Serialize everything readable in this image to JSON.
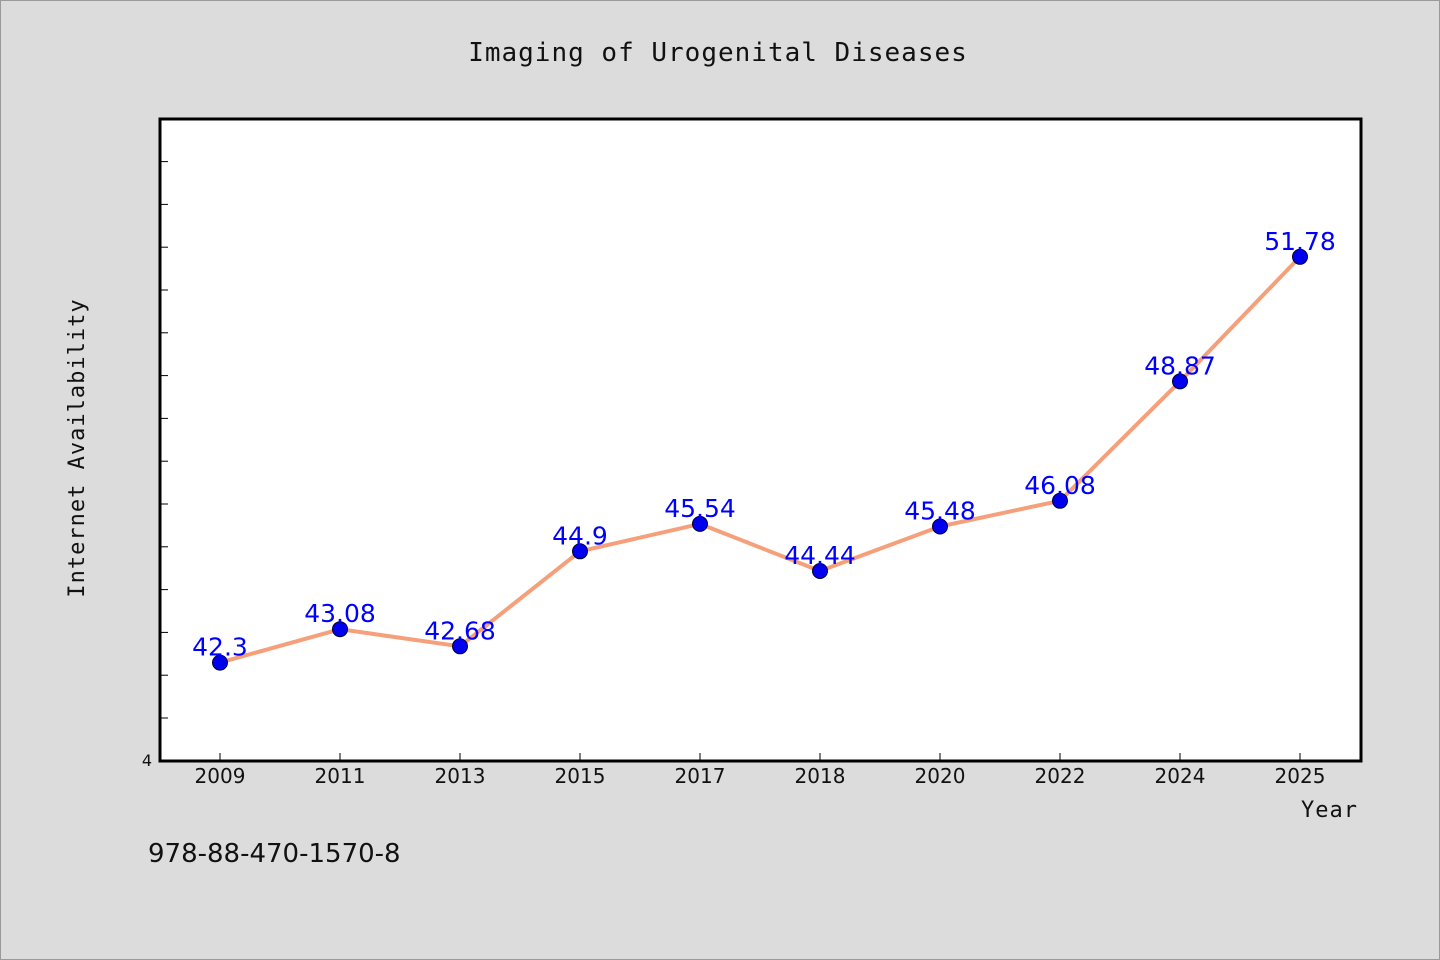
{
  "chart_data": {
    "type": "line",
    "title": "Imaging of Urogenital Diseases",
    "xlabel": "Year",
    "ylabel": "Internet Availability",
    "categories": [
      "2009",
      "2011",
      "2013",
      "2015",
      "2017",
      "2018",
      "2020",
      "2022",
      "2024",
      "2025"
    ],
    "series": [
      {
        "values": [
          42.3,
          43.08,
          42.68,
          44.9,
          45.54,
          44.44,
          45.48,
          46.08,
          48.87,
          51.78
        ]
      }
    ],
    "data_labels": [
      "42.3",
      "43.08",
      "42.68",
      "44.9",
      "45.54",
      "44.44",
      "45.48",
      "46.08",
      "48.87",
      "51.78"
    ],
    "y_min_label": "4",
    "ylim": [
      40.0,
      55.0
    ],
    "y_tick_labels_shown": false,
    "grid": false,
    "legend": "none",
    "line_color": "#f5a07a",
    "marker_color": "#0000ee",
    "label_color": "#0000ff"
  },
  "footer": {
    "isbn": "978-88-470-1570-8"
  }
}
